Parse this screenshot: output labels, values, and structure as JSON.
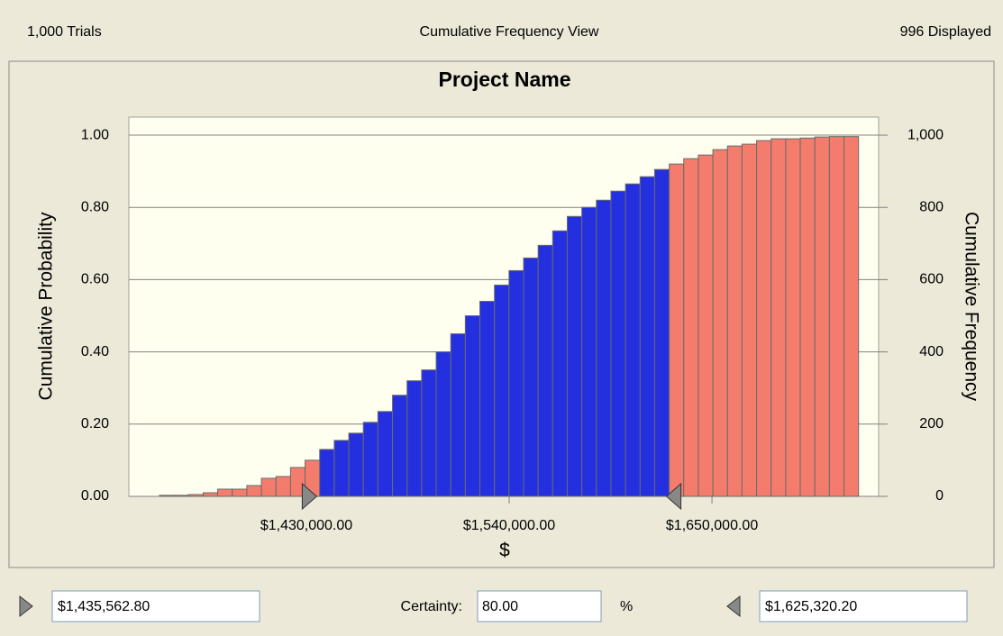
{
  "header": {
    "trials": "1,000 Trials",
    "view": "Cumulative Frequency View",
    "displayed": "996 Displayed"
  },
  "chart_data": {
    "type": "histogram",
    "title": "Project Name",
    "xlabel": "$",
    "ylabel": "Cumulative Probability",
    "y2label": "Cumulative Frequency",
    "bins": [
      1350300,
      1358200,
      1366100,
      1374000,
      1381900,
      1389800,
      1397700,
      1405600,
      1413500,
      1421400,
      1429300,
      1437200,
      1445100,
      1453000,
      1460900,
      1468800,
      1476700,
      1484600,
      1492500,
      1500400,
      1508300,
      1516200,
      1524100,
      1532000,
      1539900,
      1547800,
      1555700,
      1563600,
      1571500,
      1579400,
      1587300,
      1595200,
      1603100,
      1611000,
      1618900,
      1626800,
      1634700,
      1642600,
      1650500,
      1658400,
      1666300,
      1674200,
      1682100,
      1690000,
      1697900,
      1705800,
      1713700,
      1721600,
      1729500
    ],
    "values": [
      0.003,
      0.003,
      0.005,
      0.01,
      0.02,
      0.02,
      0.03,
      0.05,
      0.055,
      0.08,
      0.1,
      0.13,
      0.155,
      0.175,
      0.205,
      0.235,
      0.28,
      0.32,
      0.35,
      0.4,
      0.45,
      0.5,
      0.54,
      0.585,
      0.625,
      0.66,
      0.695,
      0.735,
      0.775,
      0.8,
      0.82,
      0.845,
      0.865,
      0.885,
      0.905,
      0.92,
      0.935,
      0.945,
      0.96,
      0.97,
      0.975,
      0.985,
      0.99,
      0.99,
      0.992,
      0.995,
      0.996,
      0.996
    ],
    "in_range_color": "#2430e0",
    "out_range_color": "#f47c6c",
    "xlim": [
      1333700,
      1740400
    ],
    "xticks": [
      {
        "value": 1430000,
        "label": "$1,430,000.00"
      },
      {
        "value": 1540000,
        "label": "$1,540,000.00"
      },
      {
        "value": 1650000,
        "label": "$1,650,000.00"
      }
    ],
    "ylim": [
      0,
      1.05
    ],
    "yticks": [
      {
        "value": 0,
        "label": "0.00"
      },
      {
        "value": 0.2,
        "label": "0.20"
      },
      {
        "value": 0.4,
        "label": "0.40"
      },
      {
        "value": 0.6,
        "label": "0.60"
      },
      {
        "value": 0.8,
        "label": "0.80"
      },
      {
        "value": 1,
        "label": "1.00"
      }
    ],
    "y2lim": [
      0,
      1050
    ],
    "y2ticks": [
      0,
      200,
      400,
      600,
      800,
      {
        "value": 1000,
        "label": "1,000"
      }
    ],
    "grid": true,
    "certainty_low": {
      "value": 1435562.8,
      "label": "$1,435,562.80"
    },
    "certainty_high": {
      "value": 1625320.2,
      "label": "$1,625,320.20"
    },
    "certainty_caption": "Certainty:",
    "certainty": {
      "value": 80,
      "label": "80.00"
    },
    "certainty_unit": "%"
  }
}
